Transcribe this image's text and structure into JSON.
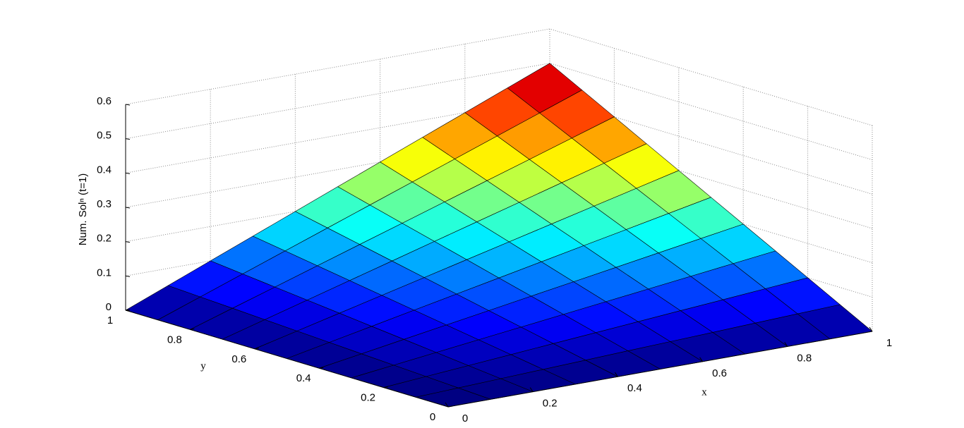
{
  "chart_data": {
    "type": "surface",
    "colormap": "jet",
    "clim": [
      0,
      0.5
    ],
    "xlabel": "x",
    "ylabel": "y",
    "zlabel": "Num. Solⁿ (t=1)",
    "x": [
      0,
      0.1,
      0.2,
      0.3,
      0.4,
      0.5,
      0.6,
      0.7,
      0.8,
      0.9,
      1
    ],
    "y": [
      0,
      0.1,
      0.2,
      0.3,
      0.4,
      0.5,
      0.6,
      0.7,
      0.8,
      0.9,
      1
    ],
    "z": [
      [
        0,
        0,
        0,
        0,
        0,
        0,
        0,
        0,
        0,
        0,
        0
      ],
      [
        0,
        0.005,
        0.01,
        0.015,
        0.02,
        0.025,
        0.03,
        0.035,
        0.04,
        0.045,
        0.05
      ],
      [
        0,
        0.01,
        0.02,
        0.03,
        0.04,
        0.05,
        0.06,
        0.07,
        0.08,
        0.09,
        0.1
      ],
      [
        0,
        0.015,
        0.03,
        0.045,
        0.06,
        0.075,
        0.09,
        0.105,
        0.12,
        0.135,
        0.15
      ],
      [
        0,
        0.02,
        0.04,
        0.06,
        0.08,
        0.1,
        0.12,
        0.14,
        0.16,
        0.18,
        0.2
      ],
      [
        0,
        0.025,
        0.05,
        0.075,
        0.1,
        0.125,
        0.15,
        0.175,
        0.2,
        0.225,
        0.25
      ],
      [
        0,
        0.03,
        0.06,
        0.09,
        0.12,
        0.15,
        0.18,
        0.21,
        0.24,
        0.27,
        0.3
      ],
      [
        0,
        0.035,
        0.07,
        0.105,
        0.14,
        0.175,
        0.21,
        0.245,
        0.28,
        0.315,
        0.35
      ],
      [
        0,
        0.04,
        0.08,
        0.12,
        0.16,
        0.2,
        0.24,
        0.28,
        0.32,
        0.36,
        0.4
      ],
      [
        0,
        0.045,
        0.09,
        0.135,
        0.18,
        0.225,
        0.27,
        0.315,
        0.36,
        0.405,
        0.45
      ],
      [
        0,
        0.05,
        0.1,
        0.15,
        0.2,
        0.25,
        0.3,
        0.35,
        0.4,
        0.45,
        0.5
      ]
    ],
    "xlim": [
      0,
      1
    ],
    "ylim": [
      0,
      1
    ],
    "zlim": [
      0,
      0.6
    ],
    "xticks": [
      0,
      0.2,
      0.4,
      0.6,
      0.8,
      1
    ],
    "yticks": [
      0,
      0.2,
      0.4,
      0.6,
      0.8,
      1
    ],
    "zticks": [
      0,
      0.1,
      0.2,
      0.3,
      0.4,
      0.5,
      0.6
    ],
    "grid": true
  }
}
